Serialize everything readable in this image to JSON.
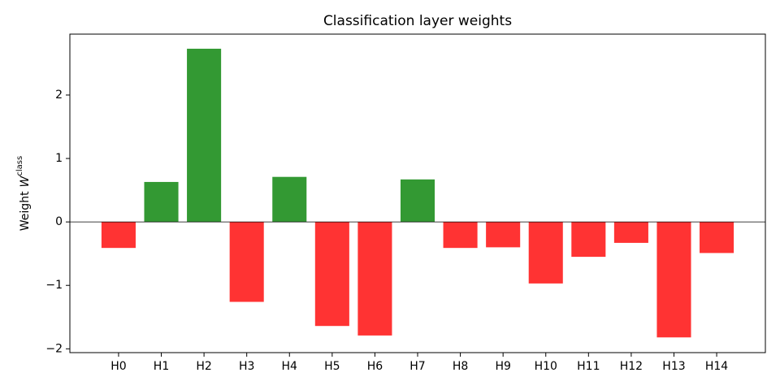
{
  "chart_data": {
    "type": "bar",
    "title": "Classification layer weights",
    "ylabel": {
      "text": "Weight",
      "symbol": "W",
      "superscript": "class"
    },
    "categories": [
      "H0",
      "H1",
      "H2",
      "H3",
      "H4",
      "H5",
      "H6",
      "H7",
      "H8",
      "H9",
      "H10",
      "H11",
      "H12",
      "H13",
      "H14"
    ],
    "values": [
      -0.41,
      0.63,
      2.73,
      -1.26,
      0.71,
      -1.64,
      -1.79,
      0.67,
      -0.41,
      -0.4,
      -0.97,
      -0.55,
      -0.33,
      -1.82,
      -0.49
    ],
    "colors": [
      "#ff3333",
      "#339933",
      "#339933",
      "#ff3333",
      "#339933",
      "#ff3333",
      "#ff3333",
      "#339933",
      "#ff3333",
      "#ff3333",
      "#ff3333",
      "#ff3333",
      "#ff3333",
      "#ff3333",
      "#ff3333"
    ],
    "ylim": [
      -2.06,
      2.96
    ],
    "yticks": [
      {
        "value": -2,
        "label": "−2"
      },
      {
        "value": -1,
        "label": "−1"
      },
      0,
      1,
      2
    ],
    "grid": false
  }
}
